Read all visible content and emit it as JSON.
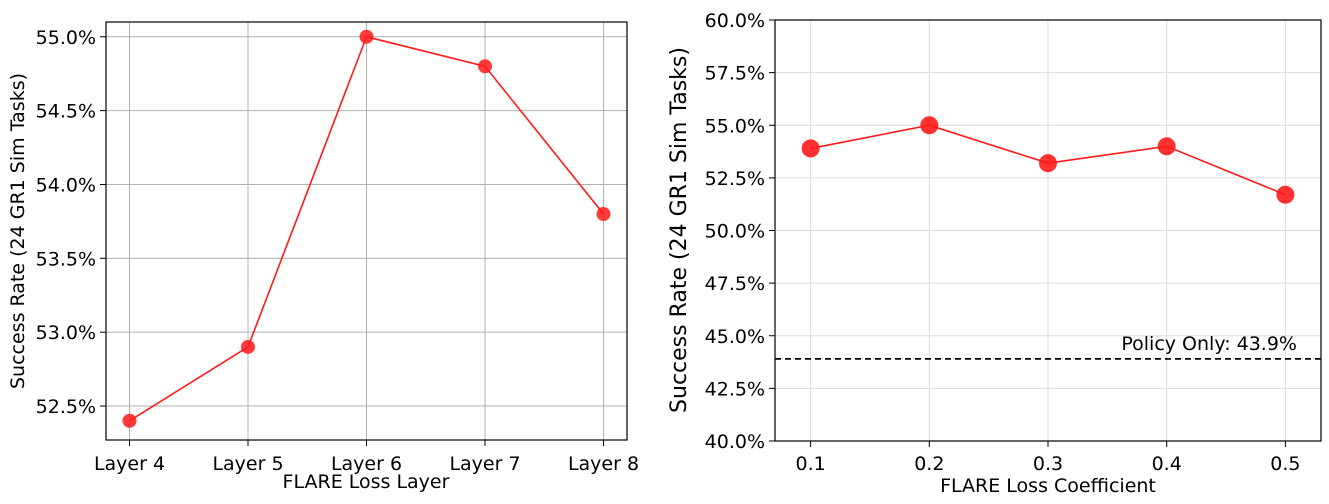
{
  "chart_data": [
    {
      "type": "line",
      "title": "",
      "xlabel": "FLARE Loss Layer",
      "ylabel": "Success Rate (24 GR1 Sim Tasks)",
      "categories": [
        "Layer 4",
        "Layer 5",
        "Layer 6",
        "Layer 7",
        "Layer 8"
      ],
      "series": [
        {
          "values": [
            52.4,
            52.9,
            55.0,
            54.8,
            53.8
          ]
        }
      ],
      "ylim": [
        52.27,
        55.1
      ],
      "yticks": [
        52.5,
        53.0,
        53.5,
        54.0,
        54.5,
        55.0
      ],
      "ytick_labels": [
        "52.5%",
        "53.0%",
        "53.5%",
        "54.0%",
        "54.5%",
        "55.0%"
      ],
      "grid": true,
      "color": "#ff1a1a"
    },
    {
      "type": "line",
      "title": "",
      "xlabel": "FLARE Loss Coefficient",
      "ylabel": "Success Rate (24 GR1 Sim Tasks)",
      "x": [
        0.1,
        0.2,
        0.3,
        0.4,
        0.5
      ],
      "xtick_labels": [
        "0.1",
        "0.2",
        "0.3",
        "0.4",
        "0.5"
      ],
      "series": [
        {
          "values": [
            53.9,
            55.0,
            53.2,
            54.0,
            51.7
          ]
        }
      ],
      "xlim": [
        0.07,
        0.53
      ],
      "ylim": [
        40.0,
        60.0
      ],
      "yticks": [
        40.0,
        42.5,
        45.0,
        47.5,
        50.0,
        52.5,
        55.0,
        57.5,
        60.0
      ],
      "ytick_labels": [
        "40.0%",
        "42.5%",
        "45.0%",
        "47.5%",
        "50.0%",
        "52.5%",
        "55.0%",
        "57.5%",
        "60.0%"
      ],
      "baseline": {
        "value": 43.9,
        "label": "Policy Only: 43.9%"
      },
      "grid": true,
      "color": "#ff1a1a"
    }
  ]
}
